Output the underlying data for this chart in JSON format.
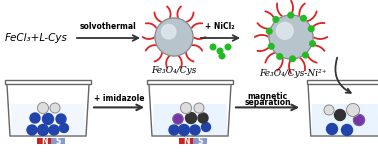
{
  "bg_color": "#ffffff",
  "text_fecl3": "FeCl₃+L-Cys",
  "text_solvothermal": "solvothermal",
  "text_nicl2": "+ NiCl₂",
  "text_fe3o4cys": "Fe₃O₄/Cys",
  "text_fe3o4cys_ni": "Fe₃O₄/Cys-Ni²⁺",
  "text_imidazole": "+ imidazole",
  "text_magnetic": "magnetic",
  "text_separation": "separation",
  "text_N": "N",
  "text_S": "S",
  "sphere_color": "#b8c4cc",
  "sphere_highlight": "#e0e8ee",
  "red_tentacle_color": "#dd2222",
  "green_dot_color": "#22bb22",
  "beaker_outline": "#666666",
  "liquid_color": "#ddeeff",
  "magnet_red": "#cc2222",
  "magnet_blue": "#8899cc",
  "blue_particle": "#2244aa",
  "purple_particle": "#7733aa",
  "black_particle": "#333333",
  "white_particle": "#dddddd",
  "arrow_color": "#333333"
}
